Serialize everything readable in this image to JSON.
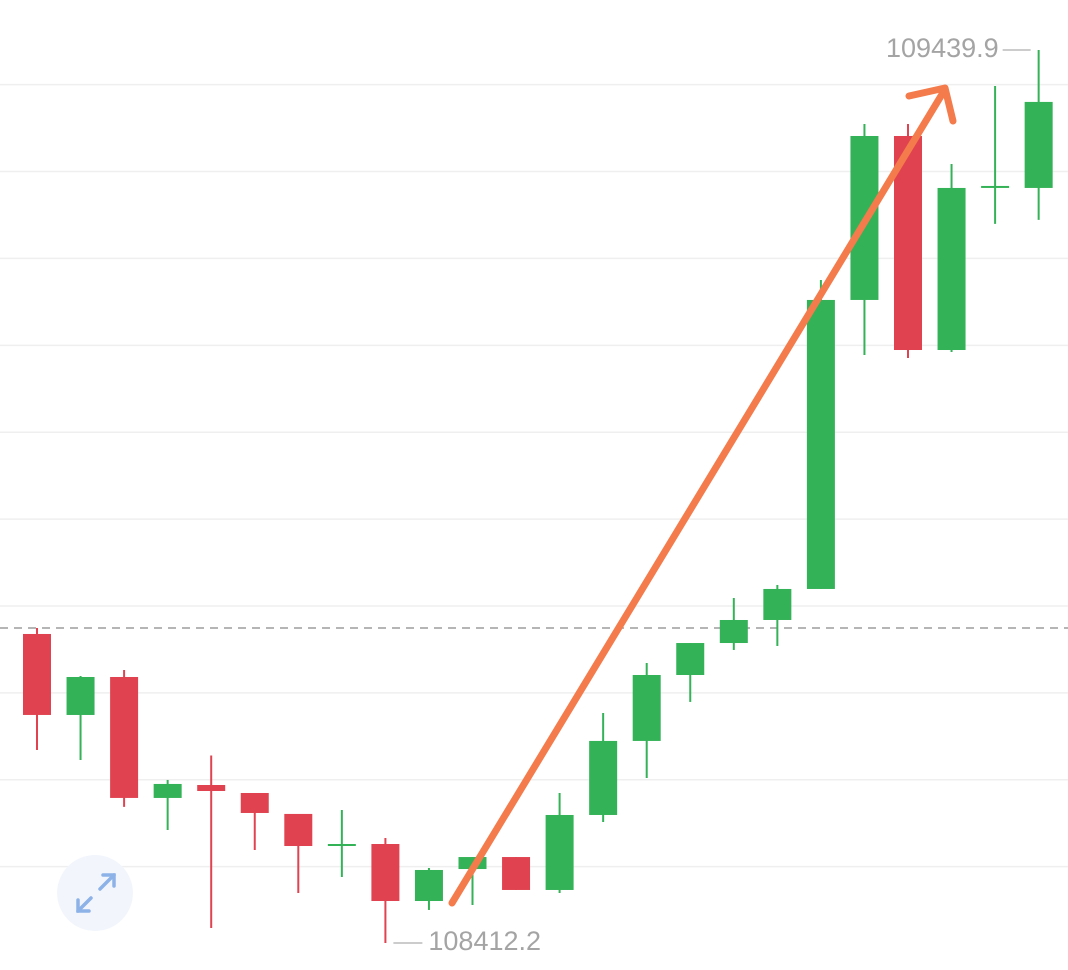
{
  "chart_data": {
    "type": "candlestick",
    "open": [
      108767.8,
      108674.6,
      108718.3,
      108579.1,
      108594.0,
      108584.8,
      108560.7,
      108523.8,
      108526.1,
      108460.5,
      108497.3,
      108511.1,
      108473.2,
      108559.5,
      108644.7,
      108720.6,
      108757.4,
      108783.9,
      108819.6,
      109152.2,
      109340.9,
      109094.6,
      109281.1,
      109281.1
    ],
    "high": [
      108774.7,
      108719.5,
      108726.4,
      108599.8,
      108627.9,
      108584.8,
      108560.7,
      108565.3,
      108533.0,
      108498.5,
      108511.1,
      108511.1,
      108584.8,
      108676.9,
      108734.4,
      108757.4,
      108809.2,
      108824.2,
      109175.2,
      109354.7,
      109354.7,
      109308.7,
      109398.5,
      109439.9
    ],
    "low": [
      108634.3,
      108622.8,
      108568.9,
      108542.2,
      108429.5,
      108519.2,
      108469.7,
      108488.1,
      108412.2,
      108450.2,
      108455.9,
      108473.2,
      108469.7,
      108551.4,
      108602.1,
      108689.6,
      108749.4,
      108754.0,
      108819.6,
      109088.9,
      109085.4,
      109092.3,
      109239.7,
      109244.3
    ],
    "close": [
      108674.6,
      108718.3,
      108579.1,
      108595.2,
      108587.1,
      108561.8,
      108523.8,
      108526.1,
      108460.5,
      108496.2,
      108511.1,
      108473.2,
      108559.5,
      108644.7,
      108720.6,
      108757.4,
      108783.9,
      108819.6,
      109152.2,
      109340.9,
      109094.6,
      109281.1,
      109283.4,
      109380.1
    ],
    "up_color": "#34b257",
    "down_color": "#e0434f",
    "ylim": [
      108381.1,
      109497.4
    ],
    "gridlines": [
      108500,
      108600,
      108700,
      108800,
      108900,
      109000,
      109100,
      109200,
      109300,
      109400
    ],
    "reference_line": 108774.7,
    "high_label": "109439.9",
    "low_label": "108412.2"
  }
}
